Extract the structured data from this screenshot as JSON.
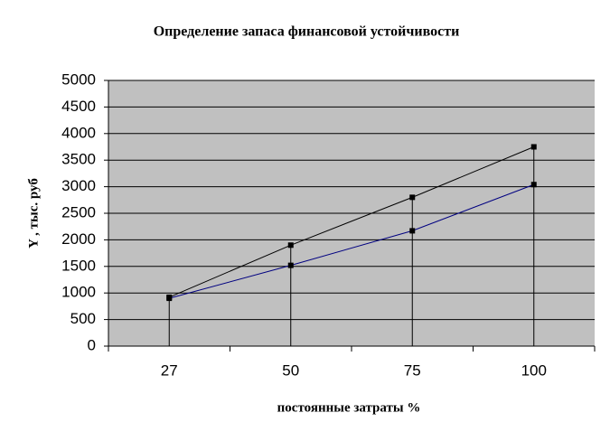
{
  "chart_data": {
    "type": "line",
    "title": "Определение запаса финансовой устойчивости",
    "x_label": "постоянные затраты %",
    "y_label": "Y , тыс. руб",
    "categories": [
      "27",
      "50",
      "75",
      "100"
    ],
    "series": [
      {
        "color": "#000000",
        "marker_color": "#000000",
        "values": [
          920,
          1900,
          2800,
          3750
        ]
      },
      {
        "color": "#000080",
        "marker_color": "#000000",
        "values": [
          900,
          1520,
          2170,
          3040
        ]
      }
    ],
    "ylim": [
      0,
      5000
    ],
    "yticks": [
      0,
      500,
      1000,
      1500,
      2000,
      2500,
      3000,
      3500,
      4000,
      4500,
      5000
    ],
    "grid": true,
    "plot_background": "#c0c0c0",
    "drop_lines": true
  }
}
